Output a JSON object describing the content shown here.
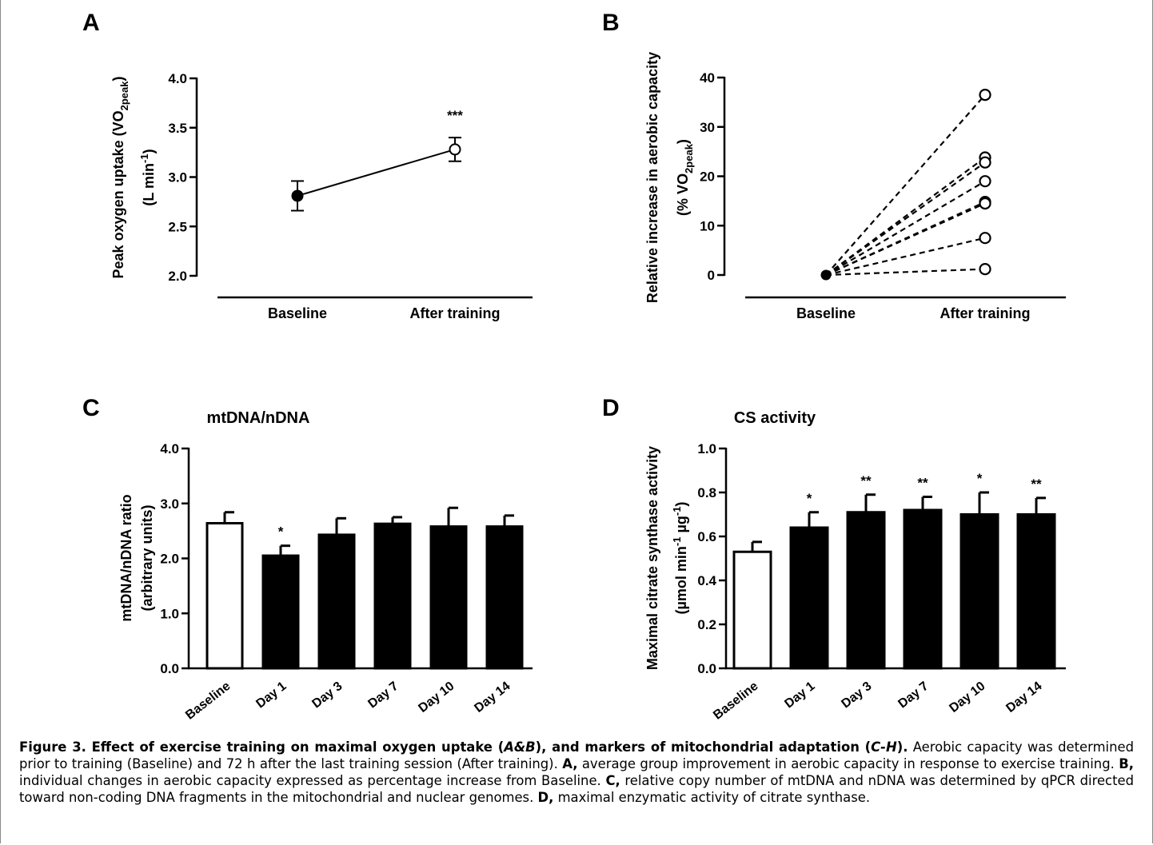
{
  "chart_data": [
    {
      "panel": "A",
      "type": "line",
      "ylabel_line1": "Peak oxygen uptake (VO",
      "ylabel_sub": "2peak",
      "ylabel_line1_end": ")",
      "ylabel_line2": "(L min",
      "ylabel_line2_sup": "-1",
      "ylabel_line2_end": ")",
      "categories": [
        "Baseline",
        "After training"
      ],
      "values": [
        2.81,
        3.28
      ],
      "errors": [
        0.15,
        0.12
      ],
      "markers": [
        "filled",
        "open"
      ],
      "annotations": [
        "",
        "***"
      ],
      "yticks": [
        "2.0",
        "2.5",
        "3.0",
        "3.5",
        "4.0"
      ],
      "ylim": [
        2.0,
        4.0
      ]
    },
    {
      "panel": "B",
      "type": "line",
      "ylabel_line1": "Relative increase in aerobic capacity",
      "ylabel_line2": "(% VO",
      "ylabel_line2_sub": "2peak",
      "ylabel_line2_end": ")",
      "categories": [
        "Baseline",
        "After training"
      ],
      "baseline": 0,
      "after_values": [
        36.5,
        23.8,
        22.8,
        19.0,
        14.8,
        14.5,
        7.5,
        1.2
      ],
      "yticks": [
        "0",
        "10",
        "20",
        "30",
        "40"
      ],
      "ylim": [
        0,
        40
      ]
    },
    {
      "panel": "C",
      "type": "bar",
      "title": "mtDNA/nDNA",
      "ylabel_line1": "mtDNA/nDNA ratio",
      "ylabel_line2": "(arbitrary units)",
      "categories": [
        "Baseline",
        "Day 1",
        "Day 3",
        "Day 7",
        "Day 10",
        "Day 14"
      ],
      "values": [
        2.64,
        2.05,
        2.43,
        2.63,
        2.58,
        2.58
      ],
      "errors": [
        0.2,
        0.18,
        0.3,
        0.12,
        0.34,
        0.2
      ],
      "fills": [
        "open",
        "filled",
        "filled",
        "filled",
        "filled",
        "filled"
      ],
      "annotations": [
        "",
        "*",
        "",
        "",
        "",
        ""
      ],
      "yticks": [
        "0.0",
        "1.0",
        "2.0",
        "3.0",
        "4.0"
      ],
      "ylim": [
        0,
        4.0
      ]
    },
    {
      "panel": "D",
      "type": "bar",
      "title": "CS activity",
      "ylabel_line1": "Maximal citrate synthase activity",
      "ylabel_line2": "(µmol min",
      "ylabel_line2_sup": "-1",
      "ylabel_line2_mid": " µg",
      "ylabel_line2_sup2": "-1",
      "ylabel_line2_end": ")",
      "categories": [
        "Baseline",
        "Day 1",
        "Day 3",
        "Day 7",
        "Day 10",
        "Day 14"
      ],
      "values": [
        0.53,
        0.64,
        0.71,
        0.72,
        0.7,
        0.7
      ],
      "errors": [
        0.045,
        0.07,
        0.08,
        0.06,
        0.1,
        0.075
      ],
      "fills": [
        "open",
        "filled",
        "filled",
        "filled",
        "filled",
        "filled"
      ],
      "annotations": [
        "",
        "*",
        "**",
        "**",
        "*",
        "**"
      ],
      "yticks": [
        "0.0",
        "0.2",
        "0.4",
        "0.6",
        "0.8",
        "1.0"
      ],
      "ylim": [
        0,
        1.0
      ]
    }
  ],
  "caption": {
    "fig_label": "Figure 3. Effect of exercise training on maximal oxygen uptake (",
    "fig_ab": "A&B",
    "fig_mid": "), and markers of mitochondrial adaptation (",
    "fig_ch": "C-H",
    "fig_end": ").",
    "text1": " Aerobic capacity was determined prior to training (Baseline) and 72 h after the last training session (After training). ",
    "a_label": "A,",
    "text_a": " average group improvement in aerobic capacity in response to exercise training. ",
    "b_label": "B,",
    "text_b": " individual changes in aerobic capacity expressed as percentage increase from Baseline. ",
    "c_label": "C,",
    "text_c": " relative copy number of mtDNA and nDNA was determined by qPCR directed toward non-coding DNA fragments in the mitochondrial and nuclear genomes. ",
    "d_label": "D,",
    "text_d": " maximal enzymatic activity of citrate synthase."
  }
}
